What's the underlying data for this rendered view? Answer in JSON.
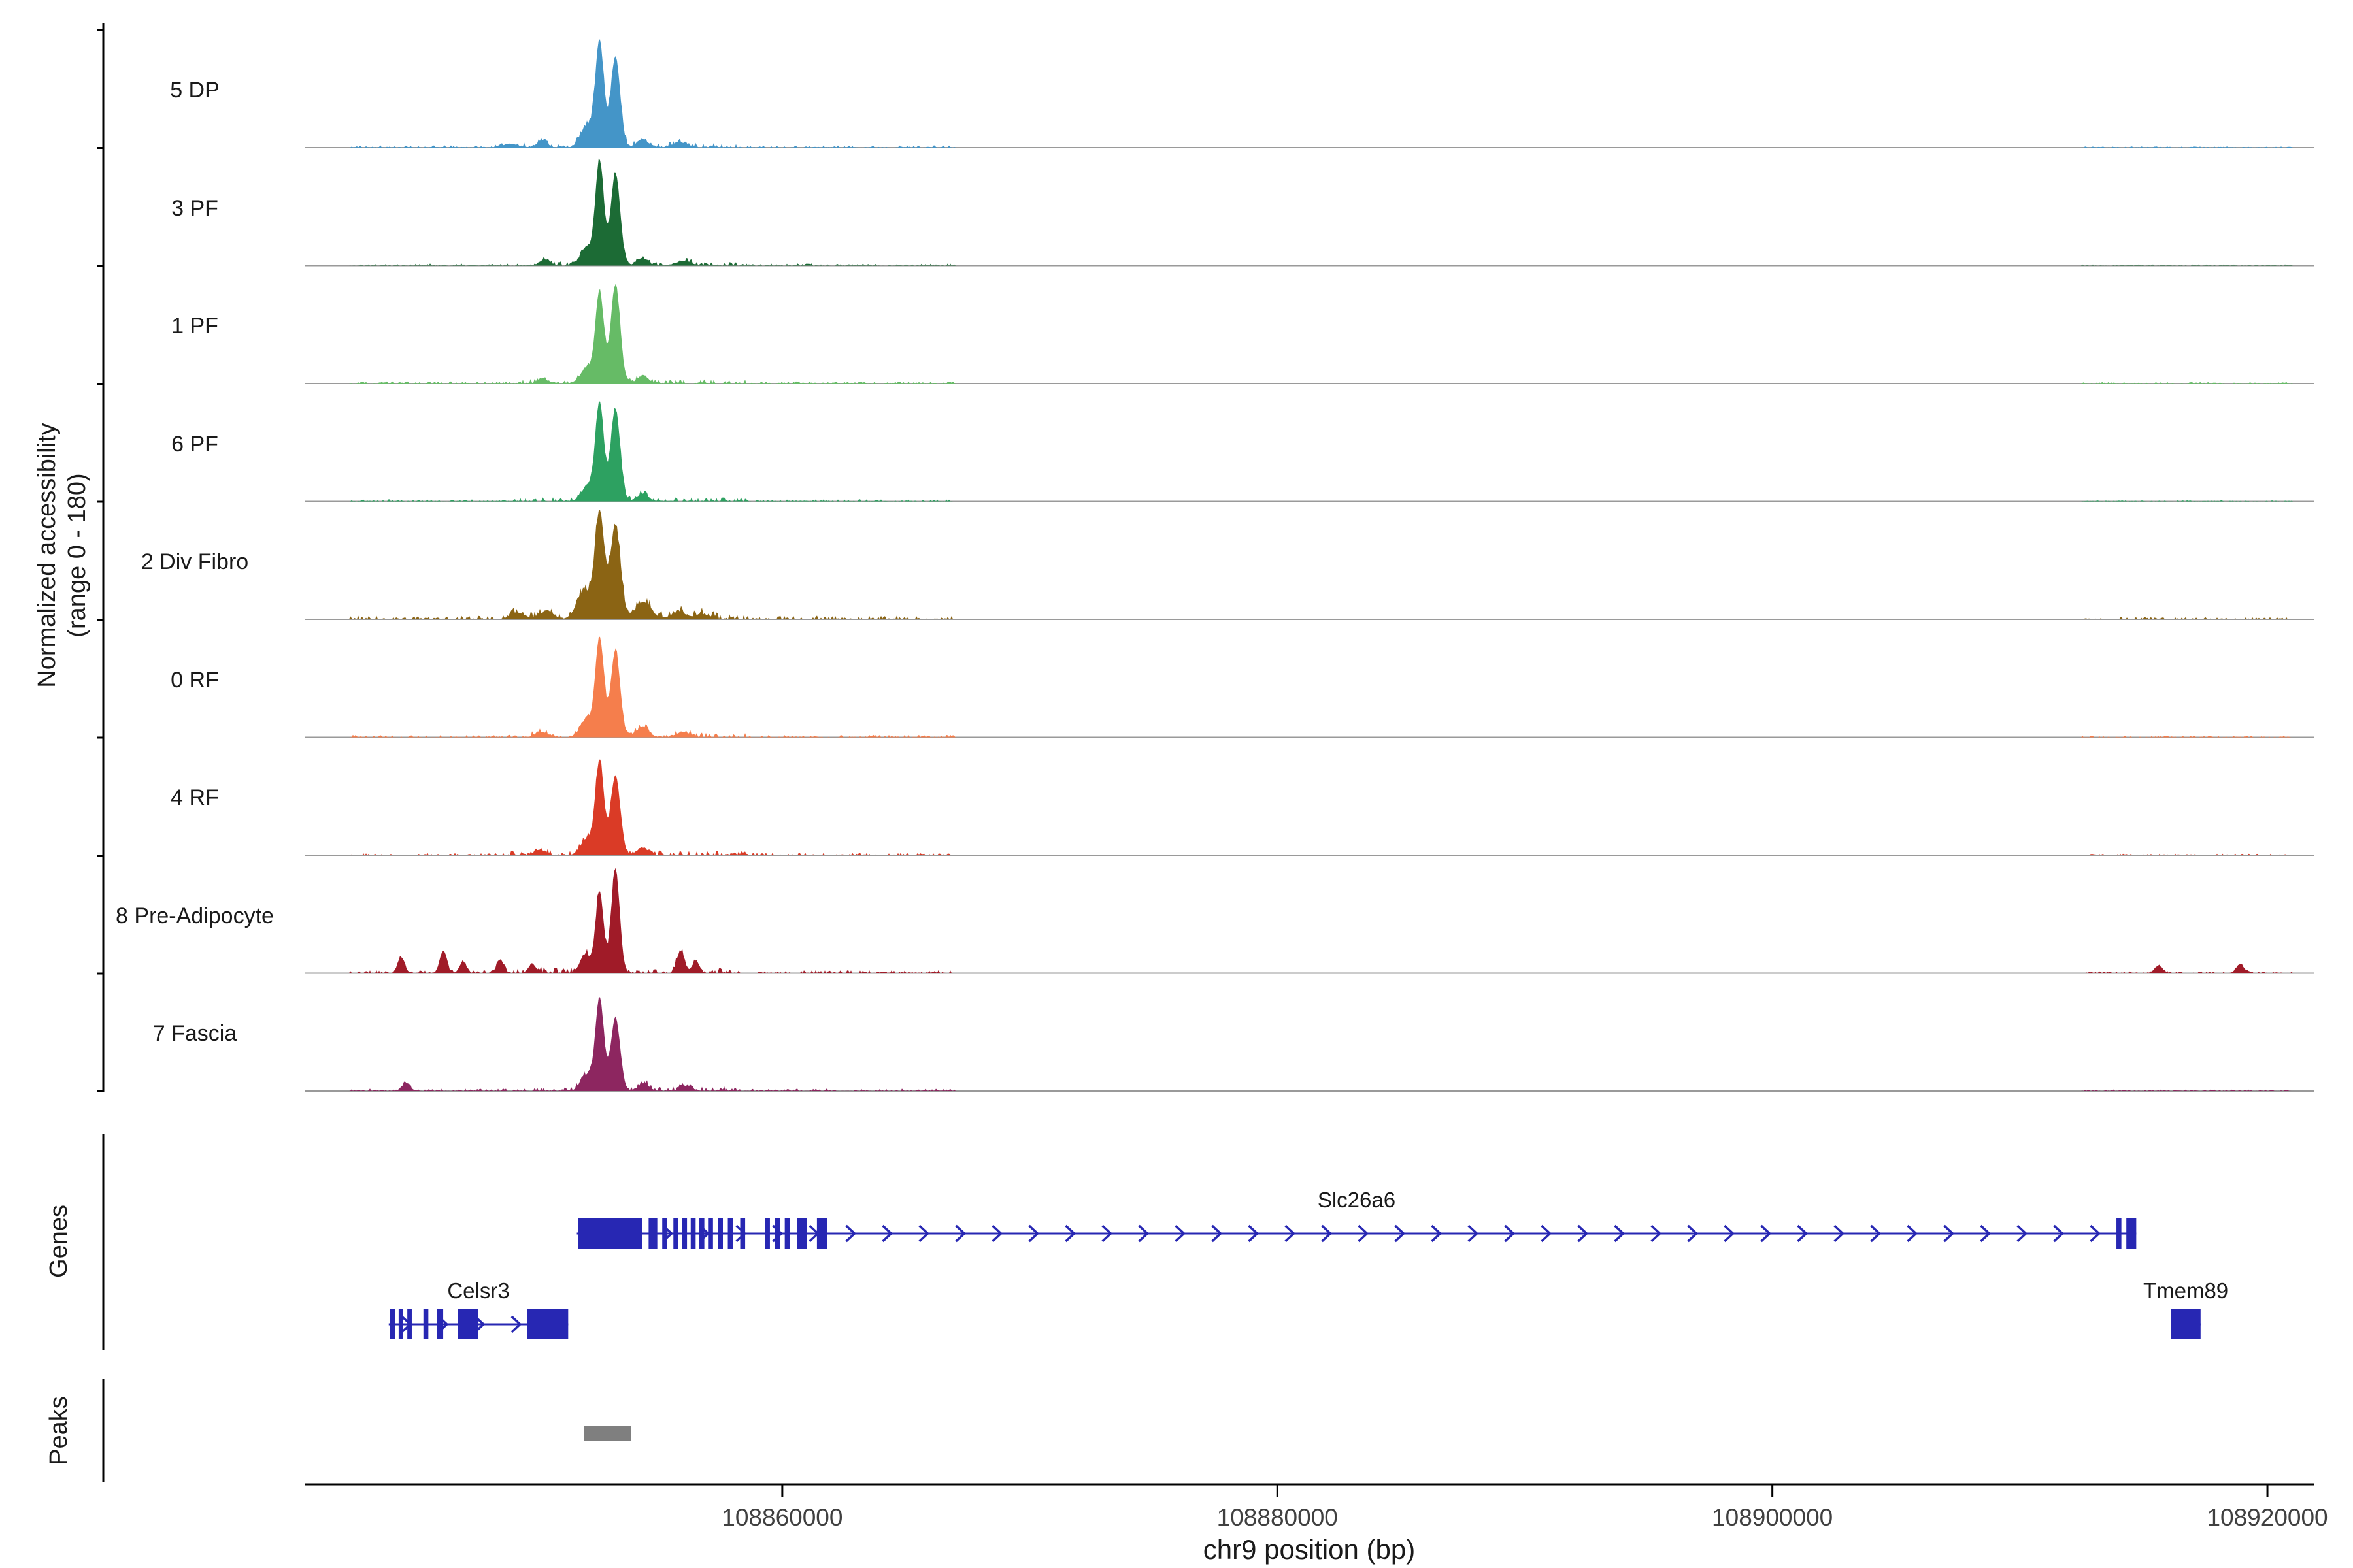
{
  "chart_data": {
    "type": "area",
    "title": "",
    "xlabel": "chr9 position (bp)",
    "ylabel_line1": "Normalized accessibility",
    "ylabel_line2": "(range 0 - 180)",
    "genes_row_label": "Genes",
    "peaks_row_label": "Peaks",
    "x_range": [
      108840700,
      108921900
    ],
    "x_ticks": [
      108860000,
      108880000,
      108900000,
      108920000
    ],
    "track_y_range": [
      0,
      180
    ],
    "gene_color": "#2727B3",
    "peak_color": "#7F7F7F",
    "baseline_color": "#9a9a9a",
    "noise_regions": {
      "main": [
        108842500,
        108867000
      ],
      "right": [
        108912500,
        108921000
      ],
      "hot": [
        108849000,
        108858500
      ]
    },
    "tracks": [
      {
        "label": "5 DP",
        "color": "#4495C8",
        "noise": {
          "main": 4,
          "right": 2,
          "seed": 11
        },
        "peaks": [
          [
            108852620,
            172,
            170
          ],
          [
            108853260,
            148,
            190
          ],
          [
            108852100,
            35,
            250
          ],
          [
            108850300,
            12,
            200
          ],
          [
            108854350,
            14,
            220
          ],
          [
            108855900,
            8,
            300
          ],
          [
            108849000,
            6,
            300
          ]
        ]
      },
      {
        "label": "3 PF",
        "color": "#1C6B35",
        "noise": {
          "main": 3.5,
          "right": 2,
          "seed": 22
        },
        "peaks": [
          [
            108852620,
            168,
            170
          ],
          [
            108853260,
            150,
            190
          ],
          [
            108852100,
            28,
            250
          ],
          [
            108850400,
            10,
            200
          ],
          [
            108854350,
            12,
            220
          ],
          [
            108856000,
            7,
            300
          ]
        ]
      },
      {
        "label": "1 PF",
        "color": "#66BB66",
        "noise": {
          "main": 3.5,
          "right": 2.5,
          "seed": 33
        },
        "peaks": [
          [
            108852620,
            148,
            170
          ],
          [
            108853260,
            160,
            190
          ],
          [
            108852100,
            25,
            250
          ],
          [
            108854350,
            12,
            220
          ],
          [
            108850300,
            8,
            200
          ]
        ]
      },
      {
        "label": "6 PF",
        "color": "#2DA161",
        "noise": {
          "main": 3.5,
          "right": 2,
          "seed": 44
        },
        "peaks": [
          [
            108852620,
            158,
            170
          ],
          [
            108853260,
            150,
            190
          ],
          [
            108852150,
            26,
            250
          ],
          [
            108854350,
            12,
            220
          ]
        ]
      },
      {
        "label": "2 Div Fibro",
        "color": "#8B6414",
        "noise": {
          "main": 6,
          "right": 4,
          "seed": 55
        },
        "peaks": [
          [
            108852620,
            170,
            190
          ],
          [
            108853260,
            150,
            210
          ],
          [
            108852000,
            45,
            300
          ],
          [
            108854400,
            28,
            300
          ],
          [
            108850500,
            14,
            250
          ],
          [
            108849300,
            10,
            300
          ],
          [
            108855800,
            12,
            300
          ],
          [
            108856800,
            8,
            300
          ]
        ]
      },
      {
        "label": "0 RF",
        "color": "#F57E4C",
        "noise": {
          "main": 4,
          "right": 2.5,
          "seed": 66
        },
        "peaks": [
          [
            108852620,
            160,
            170
          ],
          [
            108853260,
            140,
            190
          ],
          [
            108852100,
            30,
            250
          ],
          [
            108854350,
            16,
            250
          ],
          [
            108850300,
            8,
            250
          ],
          [
            108856000,
            8,
            300
          ]
        ]
      },
      {
        "label": "4 RF",
        "color": "#DA3B26",
        "noise": {
          "main": 4,
          "right": 2.5,
          "seed": 77
        },
        "peaks": [
          [
            108852620,
            152,
            170
          ],
          [
            108853260,
            130,
            190
          ],
          [
            108852100,
            26,
            250
          ],
          [
            108854350,
            12,
            220
          ],
          [
            108850200,
            8,
            250
          ]
        ]
      },
      {
        "label": "8 Pre-Adipocyte",
        "color": "#A01B28",
        "noise": {
          "main": 5,
          "right": 3,
          "seed": 88
        },
        "peaks": [
          [
            108852620,
            132,
            160
          ],
          [
            108853260,
            168,
            170
          ],
          [
            108852050,
            30,
            220
          ],
          [
            108844600,
            26,
            140
          ],
          [
            108846300,
            36,
            140
          ],
          [
            108847100,
            18,
            140
          ],
          [
            108848600,
            22,
            140
          ],
          [
            108849900,
            14,
            160
          ],
          [
            108855900,
            36,
            150
          ],
          [
            108856500,
            18,
            150
          ],
          [
            108915600,
            12,
            160
          ],
          [
            108918900,
            14,
            160
          ]
        ]
      },
      {
        "label": "7 Fascia",
        "color": "#8D2660",
        "noise": {
          "main": 4,
          "right": 3,
          "seed": 99
        },
        "peaks": [
          [
            108852620,
            150,
            170
          ],
          [
            108853260,
            118,
            190
          ],
          [
            108852100,
            26,
            240
          ],
          [
            108844800,
            13,
            160
          ],
          [
            108854400,
            12,
            220
          ],
          [
            108856100,
            8,
            250
          ]
        ]
      }
    ],
    "genes": [
      {
        "name": "Slc26a6",
        "strand": "+",
        "row": 0,
        "start": 108851700,
        "end": 108914700,
        "exons": [
          [
            108851750,
            108854350
          ],
          [
            108854600,
            108854950
          ],
          [
            108855150,
            108855350
          ],
          [
            108855600,
            108855800
          ],
          [
            108855950,
            108856150
          ],
          [
            108856300,
            108856500
          ],
          [
            108856650,
            108856850
          ],
          [
            108857000,
            108857200
          ],
          [
            108857400,
            108857600
          ],
          [
            108857800,
            108858000
          ],
          [
            108858300,
            108858500
          ],
          [
            108859300,
            108859500
          ],
          [
            108859700,
            108859900
          ],
          [
            108860100,
            108860300
          ],
          [
            108860600,
            108861000
          ],
          [
            108861400,
            108861800
          ],
          [
            108913900,
            108914100
          ],
          [
            108914300,
            108914700
          ]
        ]
      },
      {
        "name": "Celsr3",
        "strand": "+",
        "row": 1,
        "start": 108844100,
        "end": 108851350,
        "exons": [
          [
            108844150,
            108844350
          ],
          [
            108844500,
            108844680
          ],
          [
            108844850,
            108845030
          ],
          [
            108845500,
            108845700
          ],
          [
            108846050,
            108846300
          ],
          [
            108846900,
            108847700
          ],
          [
            108849700,
            108851350
          ]
        ]
      },
      {
        "name": "Tmem89",
        "strand": "+",
        "row": 1,
        "start": 108916100,
        "end": 108917300,
        "exons": [
          [
            108916100,
            108917300
          ]
        ]
      }
    ],
    "peak_regions": [
      [
        108852000,
        108853900
      ]
    ]
  }
}
